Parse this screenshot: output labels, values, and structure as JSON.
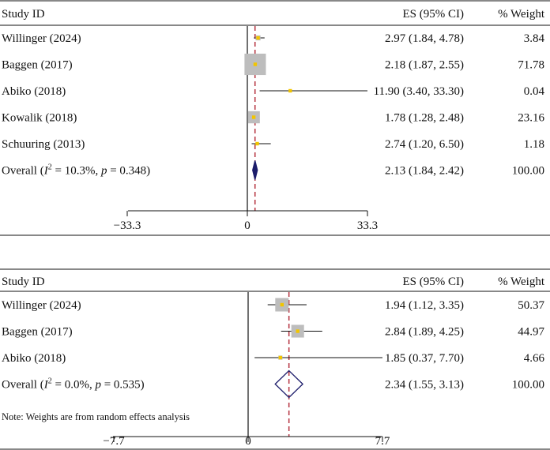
{
  "chart_data": [
    {
      "type": "forest",
      "headers": {
        "study": "Study ID",
        "es": "ES (95% CI)",
        "weight": "% Weight"
      },
      "axis": {
        "ticks": [
          -33.3,
          0,
          33.3
        ],
        "tick_labels": [
          "−33.3",
          "0",
          "33.3"
        ],
        "xlim": [
          -33.3,
          33.3
        ]
      },
      "reference_line": 0,
      "studies": [
        {
          "name": "Willinger (2024)",
          "es": 2.97,
          "lower": 1.84,
          "upper": 4.78,
          "es_text": "2.97 (1.84, 4.78)",
          "weight": 3.84,
          "weight_text": "3.84"
        },
        {
          "name": "Baggen (2017)",
          "es": 2.18,
          "lower": 1.87,
          "upper": 2.55,
          "es_text": "2.18 (1.87, 2.55)",
          "weight": 71.78,
          "weight_text": "71.78"
        },
        {
          "name": "Abiko (2018)",
          "es": 11.9,
          "lower": 3.4,
          "upper": 33.3,
          "es_text": "11.90 (3.40, 33.30)",
          "weight": 0.04,
          "weight_text": "0.04"
        },
        {
          "name": "Kowalik (2018)",
          "es": 1.78,
          "lower": 1.28,
          "upper": 2.48,
          "es_text": "1.78 (1.28, 2.48)",
          "weight": 23.16,
          "weight_text": "23.16"
        },
        {
          "name": "Schuuring (2013)",
          "es": 2.74,
          "lower": 1.2,
          "upper": 6.5,
          "es_text": "2.74 (1.20, 6.50)",
          "weight": 1.18,
          "weight_text": "1.18"
        }
      ],
      "overall": {
        "label_prefix": "Overall (",
        "i2_symbol": "I",
        "i2_exp": "2",
        "i2_rest": " = 10.3%, ",
        "p_symbol": "p",
        "p_rest": " = 0.348)",
        "es": 2.13,
        "lower": 1.84,
        "upper": 2.42,
        "es_text": "2.13 (1.84, 2.42)",
        "weight_text": "100.00"
      },
      "note": ""
    },
    {
      "type": "forest",
      "headers": {
        "study": "Study ID",
        "es": "ES (95% CI)",
        "weight": "% Weight"
      },
      "axis": {
        "ticks": [
          -7.7,
          0,
          7.7
        ],
        "tick_labels": [
          "−7.7",
          "0",
          "7.7"
        ],
        "xlim": [
          -7.7,
          7.7
        ]
      },
      "reference_line": 0,
      "studies": [
        {
          "name": "Willinger (2024)",
          "es": 1.94,
          "lower": 1.12,
          "upper": 3.35,
          "es_text": "1.94 (1.12, 3.35)",
          "weight": 50.37,
          "weight_text": "50.37"
        },
        {
          "name": "Baggen (2017)",
          "es": 2.84,
          "lower": 1.89,
          "upper": 4.25,
          "es_text": "2.84 (1.89, 4.25)",
          "weight": 44.97,
          "weight_text": "44.97"
        },
        {
          "name": "Abiko (2018)",
          "es": 1.85,
          "lower": 0.37,
          "upper": 7.7,
          "es_text": "1.85 (0.37, 7.70)",
          "weight": 4.66,
          "weight_text": "4.66"
        }
      ],
      "overall": {
        "label_prefix": "Overall (",
        "i2_symbol": "I",
        "i2_exp": "2",
        "i2_rest": " = 0.0%, ",
        "p_symbol": "p",
        "p_rest": " = 0.535)",
        "es": 2.34,
        "lower": 1.55,
        "upper": 3.13,
        "es_text": "2.34 (1.55, 3.13)",
        "weight_text": "100.00"
      },
      "note": "Note: Weights are from random effects analysis"
    }
  ],
  "colors": {
    "box": "#bdbdbd",
    "point": "#f2c500",
    "dashed": "#b5333f",
    "diamond": "#1d1d6b",
    "line": "#111111"
  }
}
